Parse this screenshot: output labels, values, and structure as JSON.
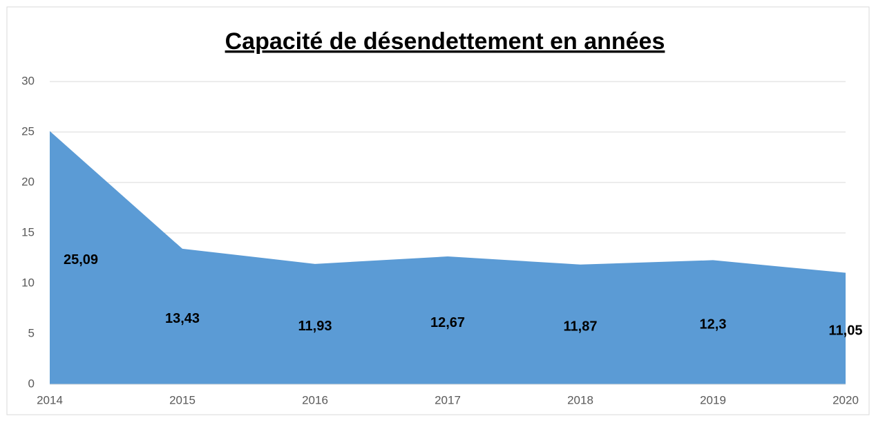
{
  "chart_data": {
    "type": "area",
    "title": "Capacité de désendettement en années",
    "categories": [
      "2014",
      "2015",
      "2016",
      "2017",
      "2018",
      "2019",
      "2020"
    ],
    "values": [
      25.09,
      13.43,
      11.93,
      12.67,
      11.87,
      12.3,
      11.05
    ],
    "value_labels": [
      "25,09",
      "13,43",
      "11,93",
      "12,67",
      "11,87",
      "12,3",
      "11,05"
    ],
    "color": "#5b9bd5",
    "ylim": [
      0,
      30
    ],
    "yticks": [
      0,
      5,
      10,
      15,
      20,
      25,
      30
    ],
    "grid": true
  }
}
